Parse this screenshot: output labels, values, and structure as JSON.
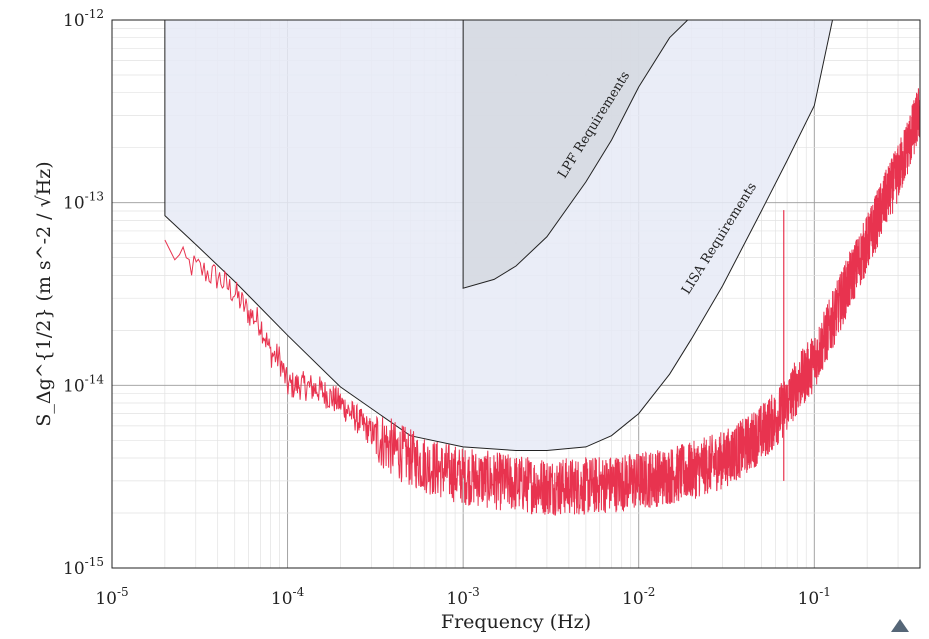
{
  "chart_data": {
    "type": "line",
    "title": "",
    "xlabel": "Frequency (Hz)",
    "ylabel": "S_Δg^{1/2} (m s^-2 / √Hz)",
    "xscale": "log",
    "yscale": "log",
    "xlim": [
      1e-05,
      0.4
    ],
    "ylim": [
      1e-15,
      1e-12
    ],
    "grid": true,
    "x_tick_labels": [
      {
        "base": "10",
        "exp": "-5"
      },
      {
        "base": "10",
        "exp": "-4"
      },
      {
        "base": "10",
        "exp": "-3"
      },
      {
        "base": "10",
        "exp": "-2"
      },
      {
        "base": "10",
        "exp": "-1"
      }
    ],
    "y_tick_labels": [
      {
        "base": "10",
        "exp": "-15"
      },
      {
        "base": "10",
        "exp": "-14"
      },
      {
        "base": "10",
        "exp": "-13"
      },
      {
        "base": "10",
        "exp": "-12"
      }
    ],
    "regions": [
      {
        "name": "LISA Requirements",
        "color": "#e6eaf6",
        "edge": "#222222",
        "x": [
          2e-05,
          3e-05,
          5e-05,
          0.0001,
          0.0002,
          0.0005,
          0.001,
          0.002,
          0.003,
          0.005,
          0.007,
          0.01,
          0.015,
          0.02,
          0.03,
          0.05,
          0.07,
          0.1,
          0.127
        ],
        "y": [
          8.5e-14,
          5.9e-14,
          3.7e-14,
          1.88e-14,
          9.8e-15,
          5.3e-15,
          4.6e-15,
          4.4e-15,
          4.4e-15,
          4.6e-15,
          5.3e-15,
          7e-15,
          1.15e-14,
          1.8e-14,
          3.5e-14,
          9e-14,
          1.7e-13,
          3.4e-13,
          1e-12
        ]
      },
      {
        "name": "LPF Requirements",
        "color": "#d3d7df",
        "edge": "#222222",
        "x": [
          0.001,
          0.0015,
          0.002,
          0.003,
          0.005,
          0.007,
          0.01,
          0.015,
          0.019
        ],
        "y": [
          3.4e-14,
          3.8e-14,
          4.5e-14,
          6.5e-14,
          1.3e-13,
          2.2e-13,
          4.3e-13,
          8e-13,
          1e-12
        ]
      }
    ],
    "series": [
      {
        "color": "#e8334f",
        "noisy": true,
        "x": [
          2e-05,
          2.5e-05,
          3e-05,
          4e-05,
          5e-05,
          6e-05,
          7e-05,
          8e-05,
          9e-05,
          0.0001,
          0.00012,
          0.00015,
          0.0002,
          0.0003,
          0.0004,
          0.0005,
          0.0007,
          0.001,
          0.0015,
          0.002,
          0.003,
          0.004,
          0.005,
          0.007,
          0.01,
          0.015,
          0.02,
          0.03,
          0.04,
          0.05,
          0.06,
          0.07,
          0.08,
          0.1,
          0.12,
          0.15,
          0.2,
          0.25,
          0.3,
          0.35,
          0.4
        ],
        "y": [
          5.9e-14,
          4.8e-14,
          4.4e-14,
          3.9e-14,
          3.2e-14,
          2.5e-14,
          2.2e-14,
          1.5e-14,
          1.4e-14,
          1e-14,
          1e-14,
          9.5e-15,
          8e-15,
          5.5e-15,
          4.5e-15,
          4e-15,
          3.5e-15,
          3.2e-15,
          3e-15,
          2.9e-15,
          2.8e-15,
          2.8e-15,
          2.8e-15,
          2.9e-15,
          3e-15,
          3.2e-15,
          3.4e-15,
          3.9e-15,
          4.6e-15,
          5.5e-15,
          6.5e-15,
          8e-15,
          1e-14,
          1.35e-14,
          2e-14,
          3.3e-14,
          6e-14,
          1e-13,
          1.45e-13,
          2.2e-13,
          3.2e-13
        ]
      }
    ],
    "spike": {
      "x": 0.067,
      "y": 9.1e-14
    }
  }
}
